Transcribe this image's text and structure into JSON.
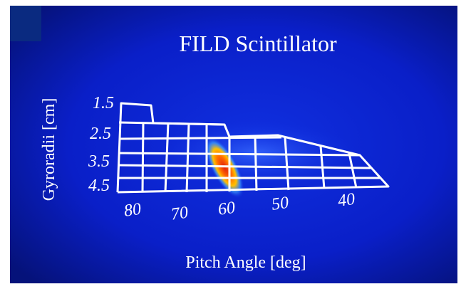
{
  "title": "FILD Scintillator",
  "y_label": "Gyroradii [cm]",
  "x_label": "Pitch Angle [deg]",
  "gyroradius_labels": [
    "1.5",
    "2.5",
    "3.5",
    "4.5"
  ],
  "pitch_labels": [
    "80",
    "70",
    "60",
    "50",
    "40"
  ]
}
